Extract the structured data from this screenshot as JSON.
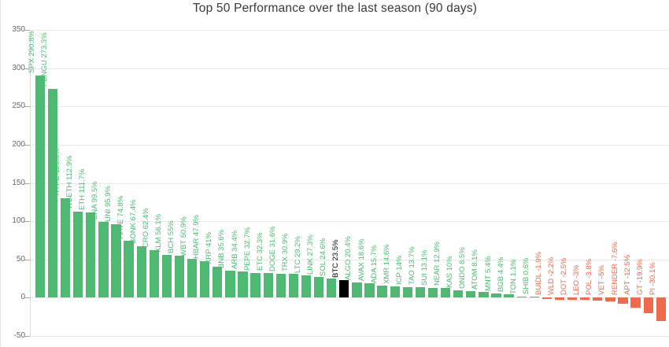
{
  "chart_data": {
    "type": "bar",
    "title": "Top 50 Performance over the last season (90 days)",
    "xlabel": "",
    "ylabel": "",
    "ylim": [
      -50,
      350
    ],
    "yticks": [
      350,
      300,
      250,
      200,
      150,
      100,
      50,
      0,
      -50
    ],
    "grid": true,
    "legend": false,
    "value_suffix": "%",
    "label_format": "{ticker} {value}%",
    "highlight": "BTC",
    "colors": {
      "positive": "#4eb973",
      "negative": "#ee6a4c",
      "highlight": "#000000",
      "gridline": "#e9e9e9",
      "tick_text": "#666666",
      "title_text": "#3a3a3a"
    },
    "points": [
      {
        "label": "SPX",
        "value": 290.8
      },
      {
        "label": "PENGU",
        "value": 273.3
      },
      {
        "label": "HYPE",
        "value": 129.8
      },
      {
        "label": "WBETH",
        "value": 112.9
      },
      {
        "label": "ETH",
        "value": 111.7
      },
      {
        "label": "ENA",
        "value": 99.5
      },
      {
        "label": "UNI",
        "value": 95.9
      },
      {
        "label": "AAVE",
        "value": 74.8
      },
      {
        "label": "BONK",
        "value": 67.4
      },
      {
        "label": "CRO",
        "value": 62.4
      },
      {
        "label": "XLM",
        "value": 56.1
      },
      {
        "label": "BCH",
        "value": 55
      },
      {
        "label": "WBT",
        "value": 50.9
      },
      {
        "label": "HBAR",
        "value": 47.9
      },
      {
        "label": "XRP",
        "value": 41
      },
      {
        "label": "BNB",
        "value": 35.6
      },
      {
        "label": "ARB",
        "value": 34.4
      },
      {
        "label": "PEPE",
        "value": 32.7
      },
      {
        "label": "ETC",
        "value": 32.3
      },
      {
        "label": "DOGE",
        "value": 31.6
      },
      {
        "label": "TRX",
        "value": 30.9
      },
      {
        "label": "LTC",
        "value": 29.2
      },
      {
        "label": "LINK",
        "value": 27.3
      },
      {
        "label": "SOL",
        "value": 24.6
      },
      {
        "label": "BTC",
        "value": 23.5
      },
      {
        "label": "ALGO",
        "value": 20.4
      },
      {
        "label": "AVAX",
        "value": 18.6
      },
      {
        "label": "ADA",
        "value": 15.7
      },
      {
        "label": "XMR",
        "value": 14.6
      },
      {
        "label": "ICP",
        "value": 14
      },
      {
        "label": "TAO",
        "value": 13.7
      },
      {
        "label": "SUI",
        "value": 13.1
      },
      {
        "label": "NEAR",
        "value": 12.9
      },
      {
        "label": "KAS",
        "value": 10
      },
      {
        "label": "ONDO",
        "value": 8.5
      },
      {
        "label": "ATOM",
        "value": 8.1
      },
      {
        "label": "MNT",
        "value": 5.4
      },
      {
        "label": "BGB",
        "value": 4.4
      },
      {
        "label": "TON",
        "value": 1.1
      },
      {
        "label": "SHIB",
        "value": 0.6
      },
      {
        "label": "BUIDL",
        "value": -1.9
      },
      {
        "label": "WLD",
        "value": -2.2
      },
      {
        "label": "DOT",
        "value": -2.5
      },
      {
        "label": "LEO",
        "value": -3
      },
      {
        "label": "POL",
        "value": -3.8
      },
      {
        "label": "VET",
        "value": -5
      },
      {
        "label": "RENDER",
        "value": -7.6
      },
      {
        "label": "APT",
        "value": -12.5
      },
      {
        "label": "GT",
        "value": -19.9
      },
      {
        "label": "PI",
        "value": -30.1
      }
    ]
  }
}
